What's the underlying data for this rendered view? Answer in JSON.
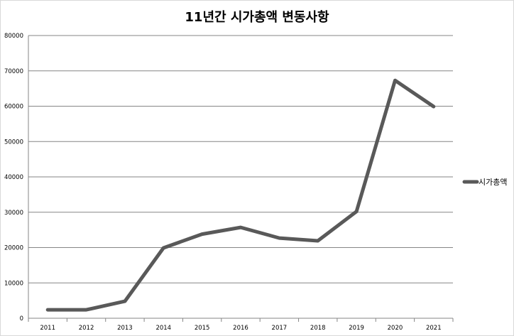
{
  "chart_data": {
    "type": "line",
    "title": "11년간 시가총액 변동사항",
    "xlabel": "",
    "ylabel": "",
    "categories": [
      "2011",
      "2012",
      "2013",
      "2014",
      "2015",
      "2016",
      "2017",
      "2018",
      "2019",
      "2020",
      "2021"
    ],
    "series": [
      {
        "name": "시가총액",
        "values": [
          2400,
          2400,
          4800,
          19900,
          23800,
          25700,
          22700,
          21900,
          30200,
          67300,
          59900
        ],
        "color": "#595959"
      }
    ],
    "ylim": [
      0,
      80000
    ],
    "yticks": [
      "0",
      "10000",
      "20000",
      "30000",
      "40000",
      "50000",
      "60000",
      "70000",
      "80000"
    ],
    "grid": true,
    "legend_position": "right"
  }
}
